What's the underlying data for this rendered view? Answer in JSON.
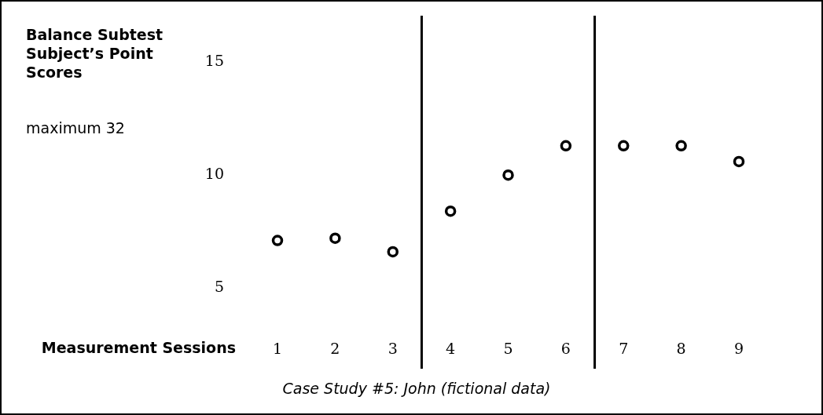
{
  "chart_data": {
    "type": "scatter",
    "ylabel": "Balance Subtest Subject’s Point Scores",
    "xlabel": "Measurement Sessions",
    "annotations": [
      "maximum 32",
      "Case Study #5: John (fictional data)"
    ],
    "x": [
      1,
      2,
      3,
      4,
      5,
      6,
      7,
      8,
      9
    ],
    "series": [
      {
        "color": "#000000",
        "values": [
          7.1,
          7.2,
          6.6,
          8.4,
          10,
          11.3,
          11.3,
          11.3,
          10.6
        ]
      }
    ],
    "xlim": [
      1,
      9
    ],
    "xticks": [
      1,
      2,
      3,
      4,
      5,
      6,
      7,
      8,
      9
    ],
    "ylim": [
      5,
      15
    ],
    "yticks": [
      5,
      10,
      15
    ],
    "ref_lines": [
      {
        "axis": "x",
        "value": 3.5,
        "color": "#000000"
      },
      {
        "axis": "x",
        "value": 6.5,
        "color": "#000000"
      }
    ],
    "grid": false,
    "legend": false,
    "marker": "circle"
  }
}
